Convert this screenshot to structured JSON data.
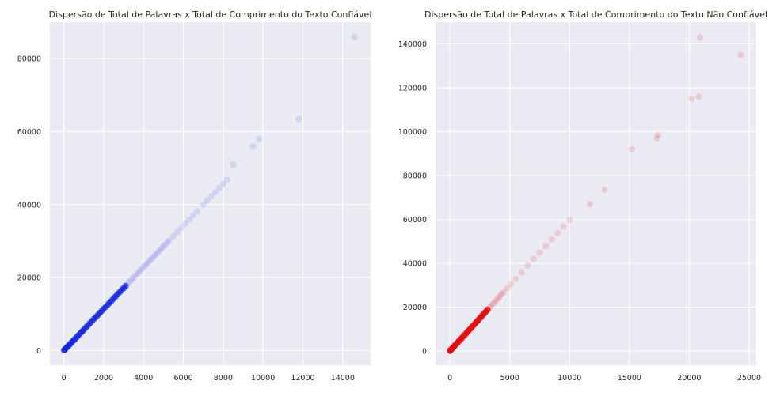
{
  "chart_data": [
    {
      "type": "scatter",
      "title": "Dispersão de Total de Palavras x Total de Comprimento do Texto Confiável",
      "xlabel": "",
      "ylabel": "",
      "xlim": [
        -700,
        15400
      ],
      "ylim": [
        -4000,
        90000
      ],
      "xticks": [
        0,
        2000,
        4000,
        6000,
        8000,
        10000,
        12000,
        14000
      ],
      "xtick_labels": [
        "0",
        "2000",
        "4000",
        "6000",
        "8000",
        "10000",
        "12000",
        "14000"
      ],
      "yticks": [
        0,
        20000,
        40000,
        60000,
        80000
      ],
      "ytick_labels": [
        "0",
        "20000",
        "40000",
        "60000",
        "80000"
      ],
      "grid": true,
      "color": "#0a1ce6",
      "point_alpha": 0.05,
      "series": [
        {
          "x": [
            10,
            60,
            120,
            180,
            250,
            320,
            400,
            480,
            560,
            650,
            740,
            830,
            920,
            1000,
            1100,
            1200,
            1300,
            1400,
            1500,
            1600,
            1700,
            1800,
            1900,
            2000,
            2100,
            2200,
            2300,
            2400,
            2500,
            2600,
            2700,
            2800,
            2900,
            3000,
            3100,
            3200,
            3300,
            3400,
            3500,
            3600,
            3700,
            3800,
            3900,
            4000,
            4100,
            4200,
            4300,
            4400,
            4500,
            4600,
            4700,
            4800,
            4900,
            5000,
            5100,
            5200,
            5300,
            5500,
            5700,
            5900,
            6100,
            6300,
            6500,
            6700,
            7000,
            7200,
            7400,
            7600,
            7800,
            8000,
            8200,
            8500,
            9500,
            9800,
            11800,
            14600
          ],
          "y": [
            100,
            350,
            700,
            1050,
            1450,
            1850,
            2300,
            2750,
            3200,
            3700,
            4200,
            4750,
            5250,
            5700,
            6300,
            6900,
            7450,
            8000,
            8600,
            9150,
            9700,
            10300,
            10850,
            11450,
            12000,
            12550,
            13150,
            13700,
            14300,
            14850,
            15450,
            16000,
            16550,
            17150,
            17700,
            18300,
            18850,
            19400,
            20000,
            20550,
            21150,
            21700,
            22300,
            22850,
            23400,
            24000,
            24550,
            25150,
            25700,
            26250,
            26850,
            27400,
            28000,
            28550,
            29100,
            29700,
            30250,
            31400,
            32500,
            33650,
            34800,
            35900,
            37050,
            38200,
            40000,
            41150,
            42300,
            43400,
            44600,
            45700,
            46850,
            51000,
            56000,
            58000,
            63500,
            86000
          ]
        }
      ]
    },
    {
      "type": "scatter",
      "title": "Dispersão de Total de Palavras x Total de Comprimento do Texto Não Confiável",
      "xlabel": "",
      "ylabel": "",
      "xlim": [
        -1200,
        25600
      ],
      "ylim": [
        -6500,
        150000
      ],
      "xticks": [
        0,
        5000,
        10000,
        15000,
        20000,
        25000
      ],
      "xtick_labels": [
        "0",
        "5000",
        "10000",
        "15000",
        "20000",
        "25000"
      ],
      "yticks": [
        0,
        20000,
        40000,
        60000,
        80000,
        100000,
        120000,
        140000
      ],
      "ytick_labels": [
        "0",
        "20000",
        "40000",
        "60000",
        "80000",
        "100000",
        "120000",
        "140000"
      ],
      "grid": true,
      "color": "#e60a0a",
      "point_alpha": 0.06,
      "series": [
        {
          "x": [
            10,
            80,
            160,
            250,
            350,
            450,
            560,
            680,
            800,
            920,
            1050,
            1200,
            1350,
            1500,
            1650,
            1800,
            1950,
            2100,
            2250,
            2400,
            2550,
            2700,
            2850,
            3000,
            3150,
            3300,
            3450,
            3600,
            3750,
            3900,
            4050,
            4200,
            4350,
            4500,
            4800,
            5100,
            5500,
            6000,
            6500,
            7000,
            7500,
            8000,
            8500,
            9000,
            9500,
            10000,
            11700,
            12900,
            15200,
            17300,
            17400,
            20200,
            20800,
            20900,
            24300
          ],
          "y": [
            100,
            500,
            950,
            1500,
            2100,
            2700,
            3350,
            4050,
            4750,
            5450,
            6250,
            7100,
            8000,
            8900,
            9800,
            10700,
            11600,
            12500,
            13400,
            14300,
            15200,
            16100,
            17000,
            17900,
            18800,
            19700,
            20600,
            21500,
            22400,
            23300,
            24200,
            25100,
            26000,
            27000,
            28700,
            30500,
            32900,
            35900,
            38900,
            41900,
            44800,
            47800,
            50800,
            53800,
            56800,
            59800,
            67000,
            73500,
            92000,
            97000,
            98500,
            115000,
            116000,
            143000,
            135000
          ]
        }
      ]
    }
  ]
}
